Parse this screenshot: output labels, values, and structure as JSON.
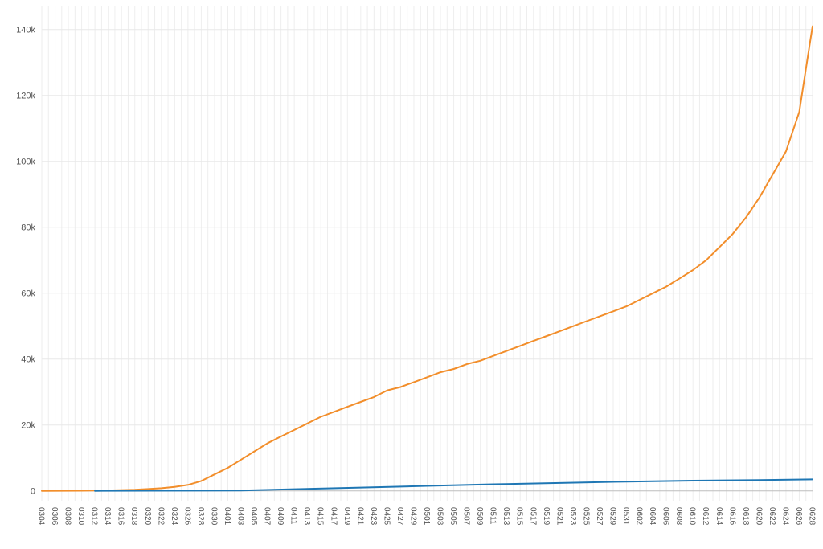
{
  "chart_data": {
    "type": "line",
    "title": "",
    "xlabel": "",
    "ylabel": "",
    "x_start": "0304",
    "x_end": "0628",
    "x_tick_labels": [
      "0304",
      "0306",
      "0308",
      "0310",
      "0312",
      "0314",
      "0316",
      "0318",
      "0320",
      "0322",
      "0324",
      "0326",
      "0328",
      "0330",
      "0401",
      "0403",
      "0405",
      "0407",
      "0409",
      "0411",
      "0413",
      "0415",
      "0417",
      "0419",
      "0421",
      "0423",
      "0425",
      "0427",
      "0429",
      "0501",
      "0503",
      "0505",
      "0507",
      "0509",
      "0511",
      "0513",
      "0515",
      "0517",
      "0519",
      "0521",
      "0523",
      "0525",
      "0527",
      "0529",
      "0531",
      "0602",
      "0604",
      "0606",
      "0608",
      "0610",
      "0612",
      "0614",
      "0616",
      "0618",
      "0620",
      "0622",
      "0624",
      "0626",
      "0628"
    ],
    "y_tick_labels": [
      "0",
      "20k",
      "40k",
      "60k",
      "80k",
      "100k",
      "120k",
      "140k"
    ],
    "y_ticks": [
      0,
      20000,
      40000,
      60000,
      80000,
      100000,
      120000,
      140000
    ],
    "ylim": [
      -3000,
      147000
    ],
    "grid": true,
    "series": [
      {
        "color": "#f28e2b",
        "points": [
          [
            "0304",
            0
          ],
          [
            "0310",
            50
          ],
          [
            "0314",
            150
          ],
          [
            "0318",
            350
          ],
          [
            "0320",
            550
          ],
          [
            "0322",
            800
          ],
          [
            "0324",
            1200
          ],
          [
            "0326",
            1800
          ],
          [
            "0328",
            3000
          ],
          [
            "0330",
            5000
          ],
          [
            "0401",
            7000
          ],
          [
            "0403",
            9500
          ],
          [
            "0405",
            12000
          ],
          [
            "0407",
            14500
          ],
          [
            "0409",
            16500
          ],
          [
            "0411",
            18500
          ],
          [
            "0413",
            20500
          ],
          [
            "0415",
            22500
          ],
          [
            "0417",
            24000
          ],
          [
            "0419",
            25500
          ],
          [
            "0421",
            27000
          ],
          [
            "0423",
            28500
          ],
          [
            "0425",
            30500
          ],
          [
            "0427",
            31500
          ],
          [
            "0429",
            33000
          ],
          [
            "0501",
            34500
          ],
          [
            "0503",
            36000
          ],
          [
            "0505",
            37000
          ],
          [
            "0507",
            38500
          ],
          [
            "0509",
            39500
          ],
          [
            "0511",
            41000
          ],
          [
            "0513",
            42500
          ],
          [
            "0515",
            44000
          ],
          [
            "0517",
            45500
          ],
          [
            "0519",
            47000
          ],
          [
            "0521",
            48500
          ],
          [
            "0523",
            50000
          ],
          [
            "0525",
            51500
          ],
          [
            "0527",
            53000
          ],
          [
            "0529",
            54500
          ],
          [
            "0531",
            56000
          ],
          [
            "0602",
            58000
          ],
          [
            "0604",
            60000
          ],
          [
            "0606",
            62000
          ],
          [
            "0608",
            64500
          ],
          [
            "0610",
            67000
          ],
          [
            "0612",
            70000
          ],
          [
            "0614",
            74000
          ],
          [
            "0616",
            78000
          ],
          [
            "0618",
            83000
          ],
          [
            "0620",
            89000
          ],
          [
            "0622",
            96000
          ],
          [
            "0624",
            103000
          ],
          [
            "0626",
            115000
          ],
          [
            "0627",
            128000
          ],
          [
            "0628",
            141000
          ]
        ]
      },
      {
        "color": "#1f77b4",
        "points": [
          [
            "0312",
            0
          ],
          [
            "0403",
            100
          ],
          [
            "0411",
            500
          ],
          [
            "0421",
            1000
          ],
          [
            "0501",
            1500
          ],
          [
            "0511",
            2000
          ],
          [
            "0521",
            2400
          ],
          [
            "0531",
            2800
          ],
          [
            "0610",
            3100
          ],
          [
            "0620",
            3300
          ],
          [
            "0628",
            3500
          ]
        ]
      }
    ]
  }
}
